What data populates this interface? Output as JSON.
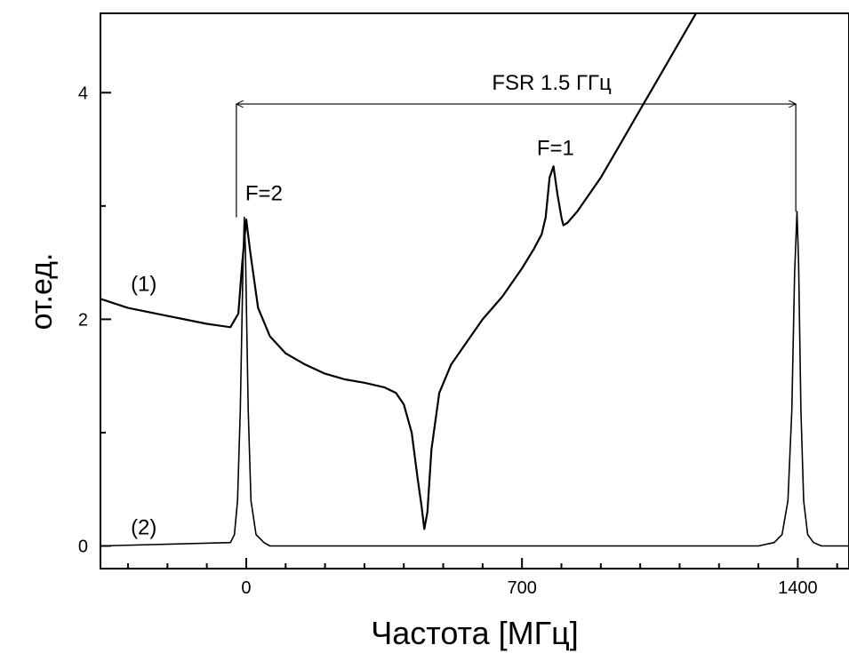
{
  "chart_data": {
    "type": "line",
    "title": "",
    "xlabel": "Частота [МГц]",
    "ylabel": "от.ед.",
    "xlim": [
      -370,
      1530
    ],
    "ylim": [
      -0.2,
      4.7
    ],
    "xticks": [
      0,
      700,
      1400
    ],
    "xtick_labels": [
      "0",
      "700",
      "1400"
    ],
    "yticks": [
      0,
      2,
      4
    ],
    "ytick_labels": [
      "0",
      "2",
      "4"
    ],
    "grid": false,
    "series": [
      {
        "name": "(1)",
        "x": [
          -370,
          -300,
          -200,
          -100,
          -40,
          -20,
          -10,
          0,
          10,
          30,
          60,
          100,
          150,
          200,
          250,
          300,
          350,
          380,
          400,
          420,
          435,
          445,
          452,
          460,
          470,
          490,
          520,
          560,
          600,
          650,
          700,
          730,
          750,
          760,
          770,
          780,
          790,
          800,
          805,
          815,
          840,
          900,
          950,
          1000,
          1050,
          1100,
          1150,
          1200
        ],
        "y": [
          2.18,
          2.1,
          2.03,
          1.96,
          1.93,
          2.05,
          2.5,
          2.88,
          2.6,
          2.1,
          1.85,
          1.7,
          1.6,
          1.52,
          1.47,
          1.44,
          1.4,
          1.35,
          1.25,
          1.0,
          0.6,
          0.35,
          0.15,
          0.3,
          0.85,
          1.35,
          1.6,
          1.8,
          2.0,
          2.2,
          2.45,
          2.62,
          2.75,
          2.9,
          3.25,
          3.35,
          3.1,
          2.9,
          2.83,
          2.85,
          2.95,
          3.25,
          3.55,
          3.85,
          4.15,
          4.45,
          4.75,
          5.05
        ]
      },
      {
        "name": "(2)",
        "x": [
          -370,
          -40,
          -30,
          -22,
          -15,
          -8,
          -5,
          -2,
          5,
          12,
          25,
          45,
          60,
          1300,
          1340,
          1360,
          1375,
          1385,
          1392,
          1398,
          1402,
          1408,
          1415,
          1425,
          1440,
          1460,
          1530
        ],
        "y": [
          0,
          0.03,
          0.1,
          0.4,
          1.2,
          2.5,
          2.9,
          2.6,
          1.2,
          0.4,
          0.1,
          0.03,
          0,
          0,
          0.03,
          0.1,
          0.4,
          1.2,
          2.4,
          2.95,
          2.5,
          1.2,
          0.4,
          0.1,
          0.03,
          0,
          0
        ]
      }
    ],
    "annotations": [
      {
        "text": "FSR 1.5 ГГц",
        "x1": -25,
        "x2": 1395,
        "y": 3.9
      },
      {
        "text": "F=2",
        "x": 45,
        "y": 3.05
      },
      {
        "text": "F=1",
        "x": 785,
        "y": 3.45
      },
      {
        "text": "(1)",
        "x": -260,
        "y": 2.25
      },
      {
        "text": "(2)",
        "x": -260,
        "y": 0.1
      }
    ]
  }
}
